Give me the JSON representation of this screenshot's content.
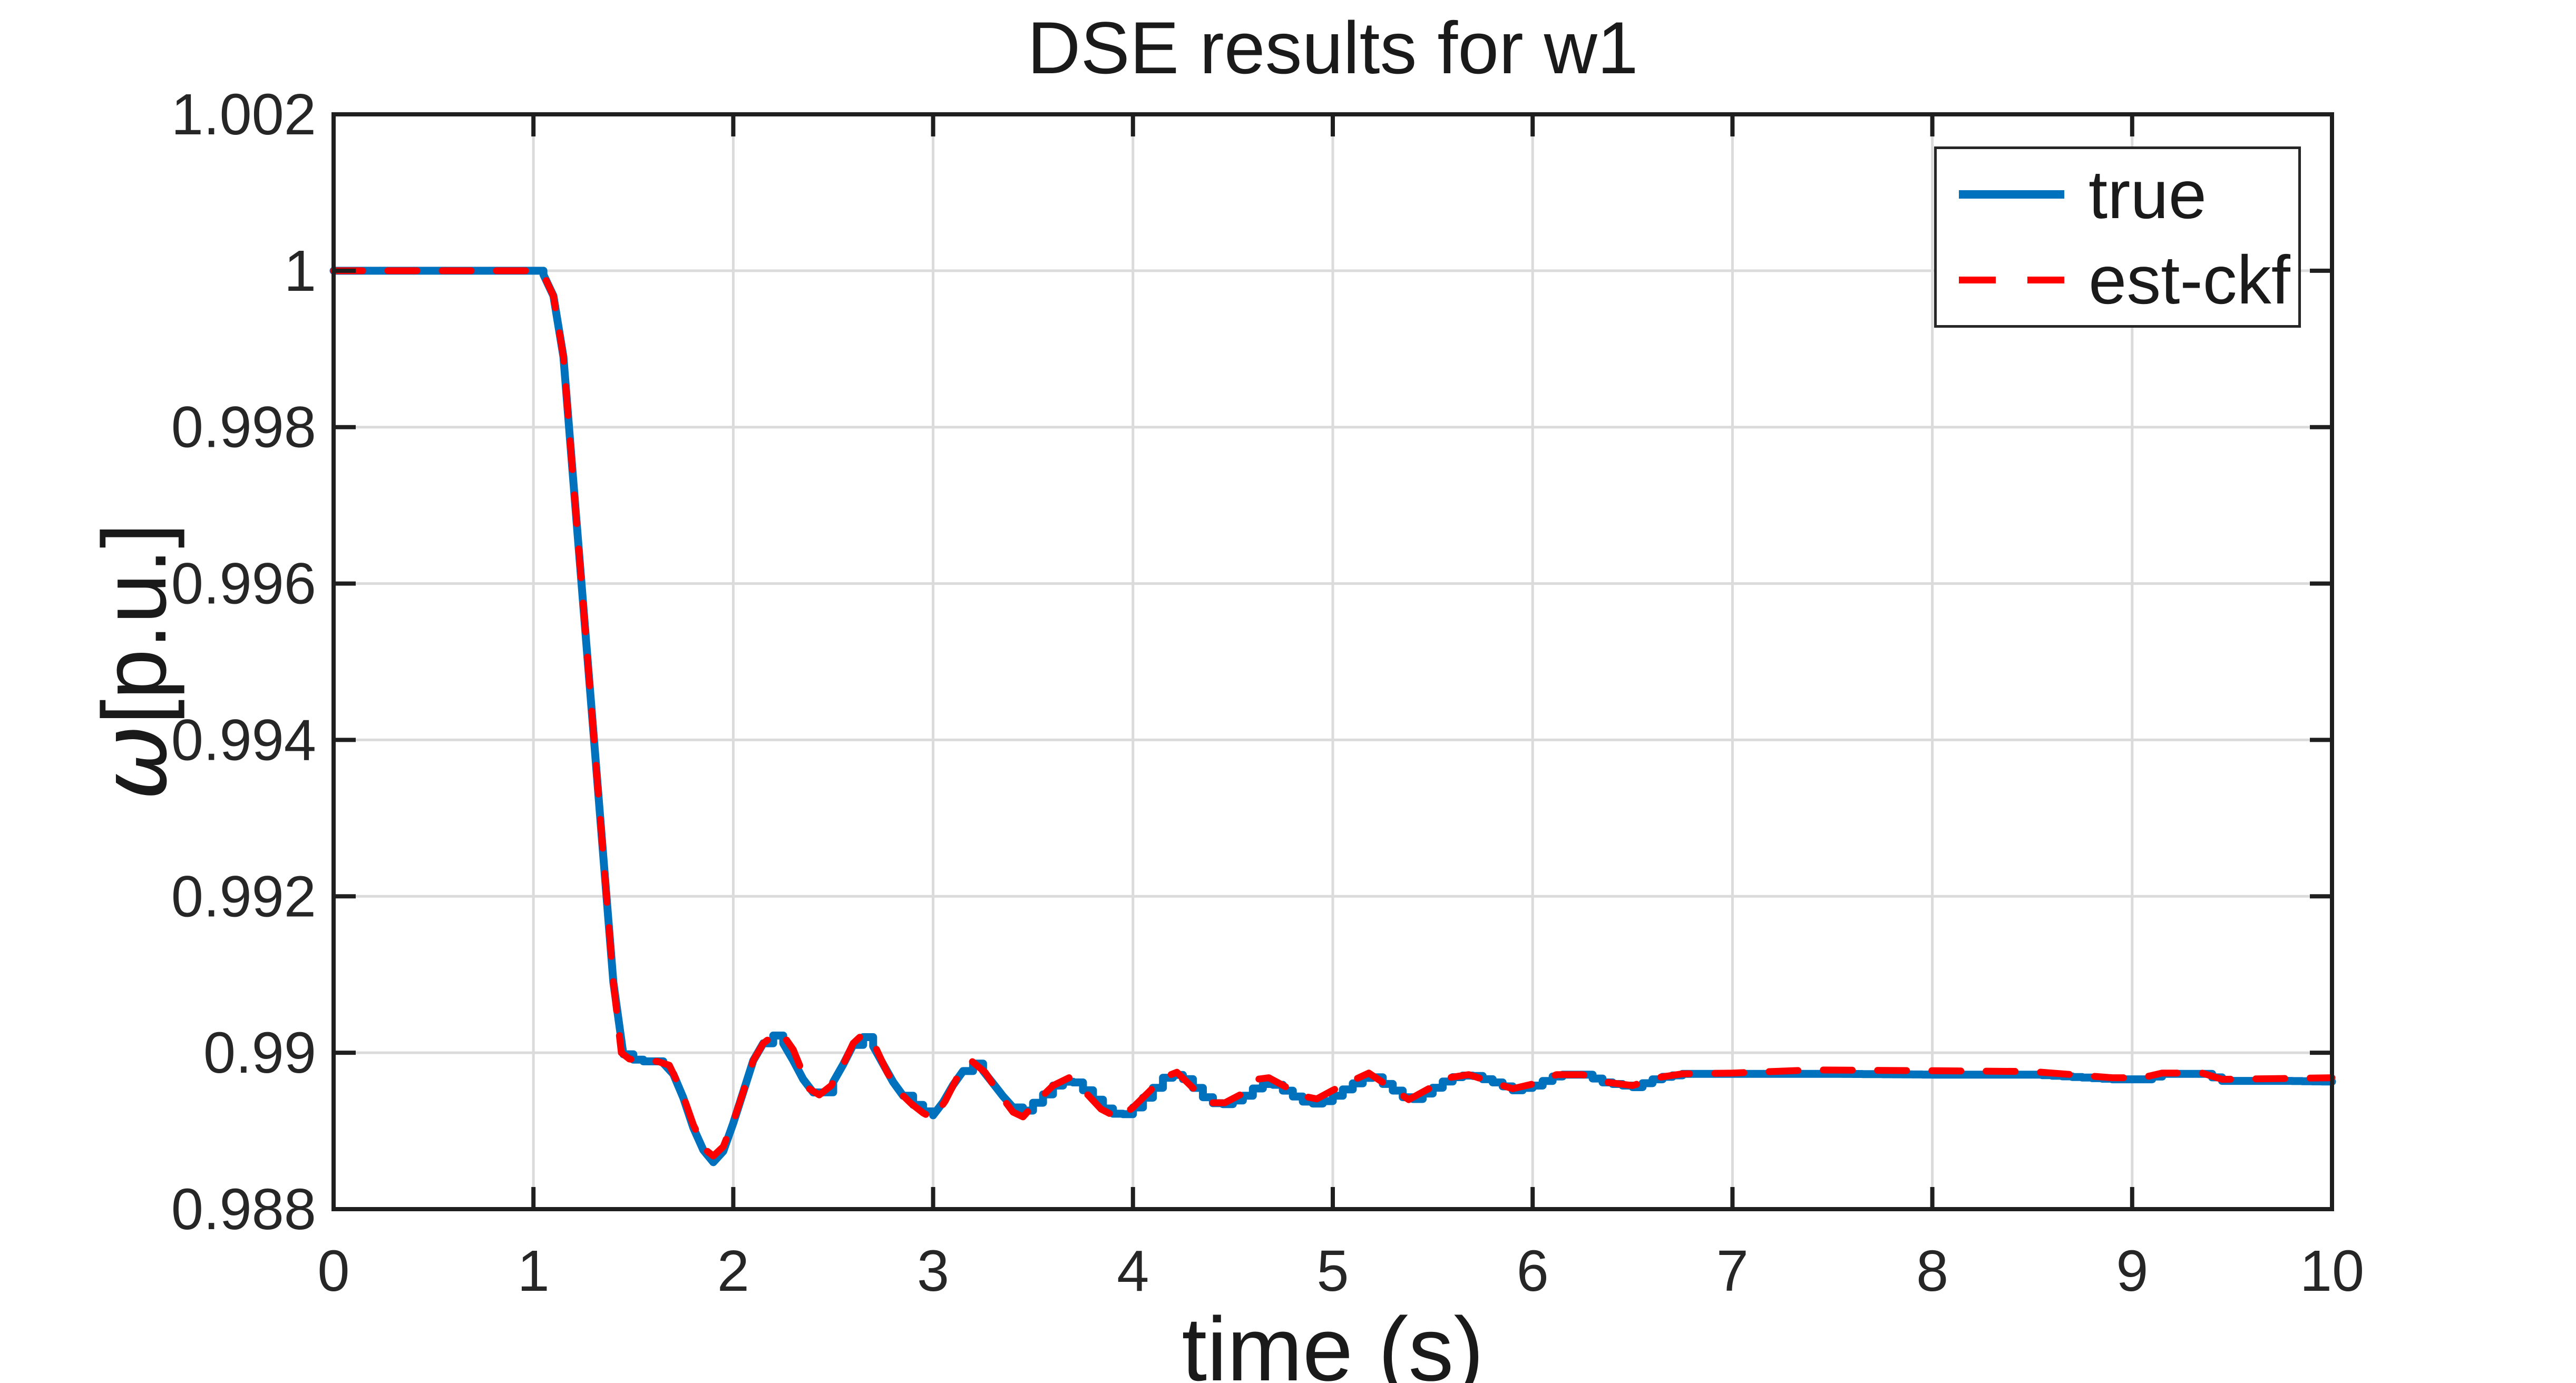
{
  "title": {
    "text": "DSE results for w1"
  },
  "xlabel": {
    "text": "time (s)"
  },
  "ylabel": {
    "omega": "ω",
    "rest": "[p.u.]"
  },
  "legend": {
    "position": "northeast",
    "items": [
      {
        "label": "true",
        "color": "#0072BD",
        "style": "solid"
      },
      {
        "label": "est-ckf",
        "color": "#FF0000",
        "style": "dashed"
      }
    ]
  },
  "colors": {
    "true_line": "#0072BD",
    "est_line": "#FF0000",
    "grid": "#DBDBDB",
    "axis": "#1F1F1F",
    "tick_text": "#262626",
    "background": "#FFFFFF"
  },
  "chart_data": {
    "type": "line",
    "title": "DSE results for w1",
    "xlabel": "time (s)",
    "ylabel": "ω[p.u.]",
    "xlim": [
      0,
      10
    ],
    "ylim": [
      0.988,
      1.002
    ],
    "grid": true,
    "legend_position": "northeast",
    "xticks": {
      "values": [
        0,
        1,
        2,
        3,
        4,
        5,
        6,
        7,
        8,
        9,
        10
      ],
      "labels": [
        "0",
        "1",
        "2",
        "3",
        "4",
        "5",
        "6",
        "7",
        "8",
        "9",
        "10"
      ]
    },
    "yticks": {
      "values": [
        0.988,
        0.99,
        0.992,
        0.994,
        0.996,
        0.998,
        1.0,
        1.002
      ],
      "labels": [
        "0.988",
        "0.99",
        "0.992",
        "0.994",
        "0.996",
        "0.998",
        "1",
        "1.002"
      ]
    },
    "series": [
      {
        "name": "true",
        "color": "#0072BD",
        "style": "solid",
        "line_width": 15,
        "render": "step",
        "points": [
          [
            0,
            1.0
          ],
          [
            0.5,
            1.0
          ],
          [
            1.0,
            1.0
          ],
          [
            1.05,
            0.99995
          ],
          [
            1.1,
            0.99968
          ],
          [
            1.15,
            0.9989
          ],
          [
            1.2,
            0.9973
          ],
          [
            1.25,
            0.9957
          ],
          [
            1.3,
            0.9941
          ],
          [
            1.35,
            0.9925
          ],
          [
            1.4,
            0.9909
          ],
          [
            1.44,
            0.99
          ],
          [
            1.48,
            0.98992
          ],
          [
            1.55,
            0.98989
          ],
          [
            1.62,
            0.98989
          ],
          [
            1.68,
            0.98984
          ],
          [
            1.74,
            0.9895
          ],
          [
            1.8,
            0.98904
          ],
          [
            1.86,
            0.9887
          ],
          [
            1.9,
            0.9886
          ],
          [
            1.95,
            0.98874
          ],
          [
            2.0,
            0.9891
          ],
          [
            2.05,
            0.9895
          ],
          [
            2.1,
            0.9899
          ],
          [
            2.15,
            0.99012
          ],
          [
            2.2,
            0.99022
          ],
          [
            2.26,
            0.9901
          ],
          [
            2.32,
            0.9898
          ],
          [
            2.38,
            0.98952
          ],
          [
            2.43,
            0.98945
          ],
          [
            2.49,
            0.98958
          ],
          [
            2.55,
            0.98985
          ],
          [
            2.6,
            0.9901
          ],
          [
            2.65,
            0.9902
          ],
          [
            2.71,
            0.99006
          ],
          [
            2.77,
            0.98975
          ],
          [
            2.83,
            0.9895
          ],
          [
            2.89,
            0.98935
          ],
          [
            2.95,
            0.98925
          ],
          [
            3.0,
            0.9892
          ],
          [
            3.06,
            0.9894
          ],
          [
            3.12,
            0.98968
          ],
          [
            3.19,
            0.98988
          ],
          [
            3.26,
            0.98975
          ],
          [
            3.33,
            0.9895
          ],
          [
            3.4,
            0.9893
          ],
          [
            3.45,
            0.98926
          ],
          [
            3.52,
            0.9894
          ],
          [
            3.6,
            0.98958
          ],
          [
            3.68,
            0.98966
          ],
          [
            3.76,
            0.9895
          ],
          [
            3.84,
            0.9893
          ],
          [
            3.93,
            0.98918
          ],
          [
            4.0,
            0.9893
          ],
          [
            4.08,
            0.9895
          ],
          [
            4.15,
            0.98968
          ],
          [
            4.22,
            0.98973
          ],
          [
            4.3,
            0.98955
          ],
          [
            4.38,
            0.98936
          ],
          [
            4.46,
            0.98934
          ],
          [
            4.55,
            0.98945
          ],
          [
            4.62,
            0.98958
          ],
          [
            4.68,
            0.98962
          ],
          [
            4.76,
            0.9895
          ],
          [
            4.84,
            0.98938
          ],
          [
            4.92,
            0.98934
          ],
          [
            5.0,
            0.98945
          ],
          [
            5.08,
            0.98958
          ],
          [
            5.18,
            0.98972
          ],
          [
            5.28,
            0.98955
          ],
          [
            5.38,
            0.98938
          ],
          [
            5.48,
            0.98952
          ],
          [
            5.58,
            0.98968
          ],
          [
            5.68,
            0.98972
          ],
          [
            5.8,
            0.98962
          ],
          [
            5.9,
            0.98952
          ],
          [
            6.0,
            0.98958
          ],
          [
            6.12,
            0.98972
          ],
          [
            6.25,
            0.98972
          ],
          [
            6.35,
            0.98962
          ],
          [
            6.5,
            0.98956
          ],
          [
            6.62,
            0.98968
          ],
          [
            6.75,
            0.98973
          ],
          [
            7.0,
            0.98973
          ],
          [
            7.5,
            0.98973
          ],
          [
            8.0,
            0.98972
          ],
          [
            8.5,
            0.98972
          ],
          [
            8.9,
            0.98966
          ],
          [
            9.05,
            0.98966
          ],
          [
            9.15,
            0.98973
          ],
          [
            9.35,
            0.98973
          ],
          [
            9.45,
            0.98964
          ],
          [
            9.75,
            0.98964
          ],
          [
            10.0,
            0.98963
          ]
        ]
      },
      {
        "name": "est-ckf",
        "color": "#FF0000",
        "style": "dashed",
        "line_width": 13,
        "dash": [
          55,
          48
        ],
        "render": "linear",
        "points": [
          [
            0,
            1.0
          ],
          [
            0.5,
            1.0
          ],
          [
            1.0,
            1.0
          ],
          [
            1.05,
            0.99995
          ],
          [
            1.1,
            0.99968
          ],
          [
            1.15,
            0.9989
          ],
          [
            1.2,
            0.9973
          ],
          [
            1.25,
            0.9957
          ],
          [
            1.3,
            0.9941
          ],
          [
            1.35,
            0.9925
          ],
          [
            1.4,
            0.9909
          ],
          [
            1.44,
            0.99
          ],
          [
            1.48,
            0.98992
          ],
          [
            1.55,
            0.98989
          ],
          [
            1.62,
            0.98989
          ],
          [
            1.68,
            0.98984
          ],
          [
            1.74,
            0.98952
          ],
          [
            1.8,
            0.98908
          ],
          [
            1.86,
            0.98876
          ],
          [
            1.9,
            0.98868
          ],
          [
            1.95,
            0.9888
          ],
          [
            2.0,
            0.98912
          ],
          [
            2.05,
            0.9895
          ],
          [
            2.1,
            0.9899
          ],
          [
            2.15,
            0.99012
          ],
          [
            2.2,
            0.99022
          ],
          [
            2.24,
            0.99026
          ],
          [
            2.3,
            0.99004
          ],
          [
            2.38,
            0.98954
          ],
          [
            2.43,
            0.98946
          ],
          [
            2.49,
            0.98958
          ],
          [
            2.55,
            0.98985
          ],
          [
            2.6,
            0.99012
          ],
          [
            2.65,
            0.99024
          ],
          [
            2.71,
            0.99008
          ],
          [
            2.77,
            0.98975
          ],
          [
            2.83,
            0.9895
          ],
          [
            2.89,
            0.98935
          ],
          [
            2.95,
            0.98923
          ],
          [
            3.0,
            0.98916
          ],
          [
            3.06,
            0.98938
          ],
          [
            3.12,
            0.98968
          ],
          [
            3.19,
            0.9899
          ],
          [
            3.26,
            0.98975
          ],
          [
            3.33,
            0.98948
          ],
          [
            3.4,
            0.98924
          ],
          [
            3.45,
            0.98918
          ],
          [
            3.52,
            0.98938
          ],
          [
            3.6,
            0.98958
          ],
          [
            3.68,
            0.98968
          ],
          [
            3.76,
            0.9895
          ],
          [
            3.84,
            0.98928
          ],
          [
            3.93,
            0.98916
          ],
          [
            4.0,
            0.9893
          ],
          [
            4.08,
            0.9895
          ],
          [
            4.15,
            0.98968
          ],
          [
            4.22,
            0.98975
          ],
          [
            4.3,
            0.98955
          ],
          [
            4.38,
            0.98936
          ],
          [
            4.46,
            0.98936
          ],
          [
            4.55,
            0.98948
          ],
          [
            4.62,
            0.98966
          ],
          [
            4.68,
            0.98968
          ],
          [
            4.76,
            0.98957
          ],
          [
            4.84,
            0.98945
          ],
          [
            4.92,
            0.98941
          ],
          [
            5.0,
            0.98952
          ],
          [
            5.08,
            0.98962
          ],
          [
            5.18,
            0.98974
          ],
          [
            5.28,
            0.98957
          ],
          [
            5.38,
            0.9894
          ],
          [
            5.48,
            0.98954
          ],
          [
            5.58,
            0.98968
          ],
          [
            5.68,
            0.98972
          ],
          [
            5.8,
            0.98962
          ],
          [
            5.9,
            0.98954
          ],
          [
            6.0,
            0.9896
          ],
          [
            6.12,
            0.98972
          ],
          [
            6.25,
            0.98972
          ],
          [
            6.35,
            0.98963
          ],
          [
            6.5,
            0.98958
          ],
          [
            6.62,
            0.98968
          ],
          [
            6.75,
            0.98973
          ],
          [
            7.0,
            0.98974
          ],
          [
            7.4,
            0.98978
          ],
          [
            8.0,
            0.98977
          ],
          [
            8.5,
            0.98976
          ],
          [
            8.9,
            0.98968
          ],
          [
            9.05,
            0.98968
          ],
          [
            9.15,
            0.98974
          ],
          [
            9.35,
            0.98974
          ],
          [
            9.45,
            0.98966
          ],
          [
            9.75,
            0.98967
          ],
          [
            10.0,
            0.98968
          ]
        ]
      }
    ]
  }
}
